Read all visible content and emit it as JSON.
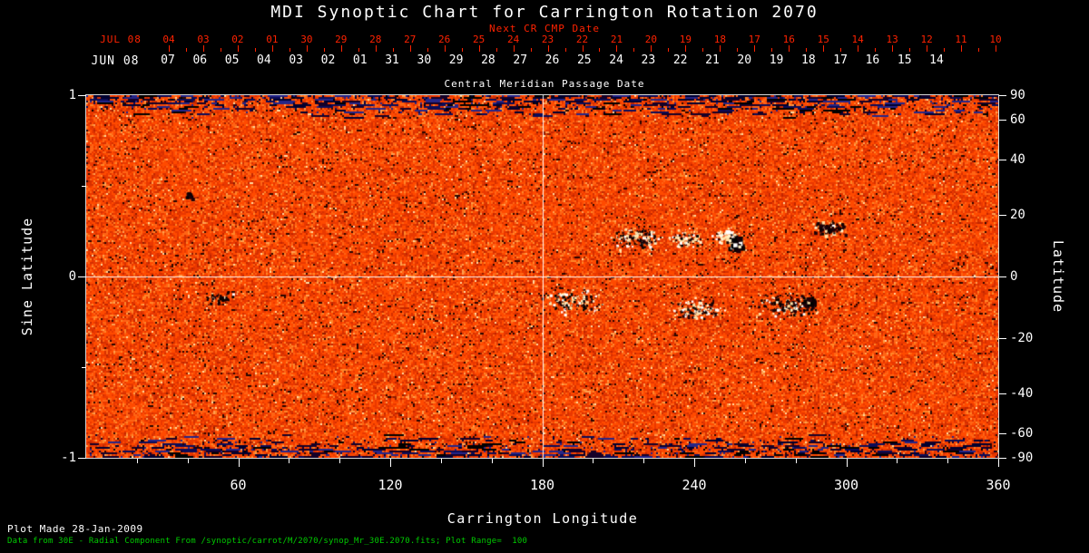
{
  "title": "MDI Synoptic Chart for Carrington Rotation 2070",
  "top_axis": {
    "subtitle": "Next CR CMP Date",
    "month_label": "JUL 08",
    "days": [
      "04",
      "03",
      "02",
      "01",
      "30",
      "29",
      "28",
      "27",
      "26",
      "25",
      "24",
      "23",
      "22",
      "21",
      "20",
      "19",
      "18",
      "17",
      "16",
      "15",
      "14",
      "13",
      "12",
      "11",
      "10"
    ],
    "color": "#ff2200"
  },
  "cmp_axis": {
    "month_label": "JUN 08",
    "days": [
      "07",
      "06",
      "05",
      "04",
      "03",
      "02",
      "01",
      "31",
      "30",
      "29",
      "28",
      "27",
      "26",
      "25",
      "24",
      "23",
      "22",
      "21",
      "20",
      "19",
      "18",
      "17",
      "16",
      "15",
      "14"
    ],
    "label": "Central Meridian Passage Date"
  },
  "x_axis": {
    "label": "Carrington Longitude",
    "range": [
      0,
      360
    ],
    "major_ticks": [
      60,
      120,
      180,
      240,
      300,
      360
    ],
    "minor_tick_step": 20
  },
  "y_left": {
    "label": "Sine Latitude",
    "range": [
      -1,
      1
    ],
    "major_ticks": [
      1,
      0,
      -1
    ],
    "minor_ticks": [
      0.5,
      -0.5
    ]
  },
  "y_right": {
    "label": "Latitude",
    "ticks": [
      90,
      60,
      40,
      20,
      0,
      -20,
      -40,
      -60,
      -90
    ]
  },
  "footer": {
    "line1": "Plot Made 28-Jan-2009",
    "line2": "Data from 30E - Radial Component From /synoptic/carrot/M/2070/synop_Mr_30E.2070.fits; Plot Range=  100",
    "line2_color": "#00cc00"
  },
  "chart_data": {
    "type": "heatmap",
    "title": "MDI Synoptic Chart for Carrington Rotation 2070",
    "xlabel": "Carrington Longitude",
    "ylabel_left": "Sine Latitude",
    "ylabel_right": "Latitude",
    "x_range": [
      0,
      360
    ],
    "y_range_sine": [
      -1,
      1
    ],
    "plot_range_gauss": 100,
    "colormap": "red-orange solar magnetogram noise field; white speckles = positive radial field, black speckles = negative radial field, dark blue streaks at high-latitude edges",
    "grid_lines": {
      "longitude": 180,
      "sine_latitude": 0
    },
    "noise": {
      "cell": 2,
      "seed": 20700,
      "base_palette": [
        {
          "p": 0.3,
          "c": "#ff4a00"
        },
        {
          "p": 0.55,
          "c": "#ea3800"
        },
        {
          "p": 0.7,
          "c": "#ff6414"
        },
        {
          "p": 0.82,
          "c": "#d63000"
        },
        {
          "p": 0.88,
          "c": "#ff8628"
        },
        {
          "p": 0.93,
          "c": "#c22600"
        },
        {
          "p": 0.962,
          "c": "#ffa050"
        },
        {
          "p": 0.981,
          "c": "#8e1c00"
        },
        {
          "p": 0.993,
          "c": "#ffd9a0"
        },
        {
          "p": 1.0,
          "c": "#2a0600"
        }
      ],
      "edge_palette": [
        "#000030",
        "#0c0c58",
        "#000000",
        "#262688",
        "#160028"
      ],
      "edge_depth": 26,
      "edge_max_p": 0.5,
      "white_shades": [
        "#ffffff",
        "#fff1c8",
        "#ffe3a6"
      ],
      "black_shades": [
        "#000000",
        "#0c0006",
        "#1f0008"
      ]
    },
    "active_regions": [
      {
        "lon": 217,
        "sine_lat": 0.21,
        "rx_deg": 9,
        "ry_sine": 0.05,
        "n": 160,
        "white_frac": 0.45,
        "size_boost": 1
      },
      {
        "lon": 236,
        "sine_lat": 0.21,
        "rx_deg": 5,
        "ry_sine": 0.04,
        "n": 90,
        "white_frac": 0.75,
        "size_boost": 1
      },
      {
        "lon": 256,
        "sine_lat": 0.185,
        "rx_deg": 2.5,
        "ry_sine": 0.03,
        "n": 70,
        "white_frac": 0.12,
        "size_boost": 2
      },
      {
        "lon": 252,
        "sine_lat": 0.23,
        "rx_deg": 4,
        "ry_sine": 0.04,
        "n": 60,
        "white_frac": 0.85,
        "size_boost": 1
      },
      {
        "lon": 293,
        "sine_lat": 0.27,
        "rx_deg": 5,
        "ry_sine": 0.035,
        "n": 90,
        "white_frac": 0.25,
        "size_boost": 1.2
      },
      {
        "lon": 192,
        "sine_lat": -0.13,
        "rx_deg": 10,
        "ry_sine": 0.06,
        "n": 150,
        "white_frac": 0.55,
        "size_boost": 1
      },
      {
        "lon": 241,
        "sine_lat": -0.18,
        "rx_deg": 9,
        "ry_sine": 0.05,
        "n": 140,
        "white_frac": 0.6,
        "size_boost": 1
      },
      {
        "lon": 277,
        "sine_lat": -0.16,
        "rx_deg": 12,
        "ry_sine": 0.06,
        "n": 170,
        "white_frac": 0.3,
        "size_boost": 1
      },
      {
        "lon": 285,
        "sine_lat": -0.13,
        "rx_deg": 2,
        "ry_sine": 0.025,
        "n": 40,
        "white_frac": 0.1,
        "size_boost": 1.7
      },
      {
        "lon": 40,
        "sine_lat": 0.45,
        "rx_deg": 1.5,
        "ry_sine": 0.02,
        "n": 14,
        "white_frac": 0.1,
        "size_boost": 1.3
      },
      {
        "lon": 53,
        "sine_lat": -0.12,
        "rx_deg": 6,
        "ry_sine": 0.04,
        "n": 55,
        "white_frac": 0.2,
        "size_boost": 1
      }
    ]
  }
}
